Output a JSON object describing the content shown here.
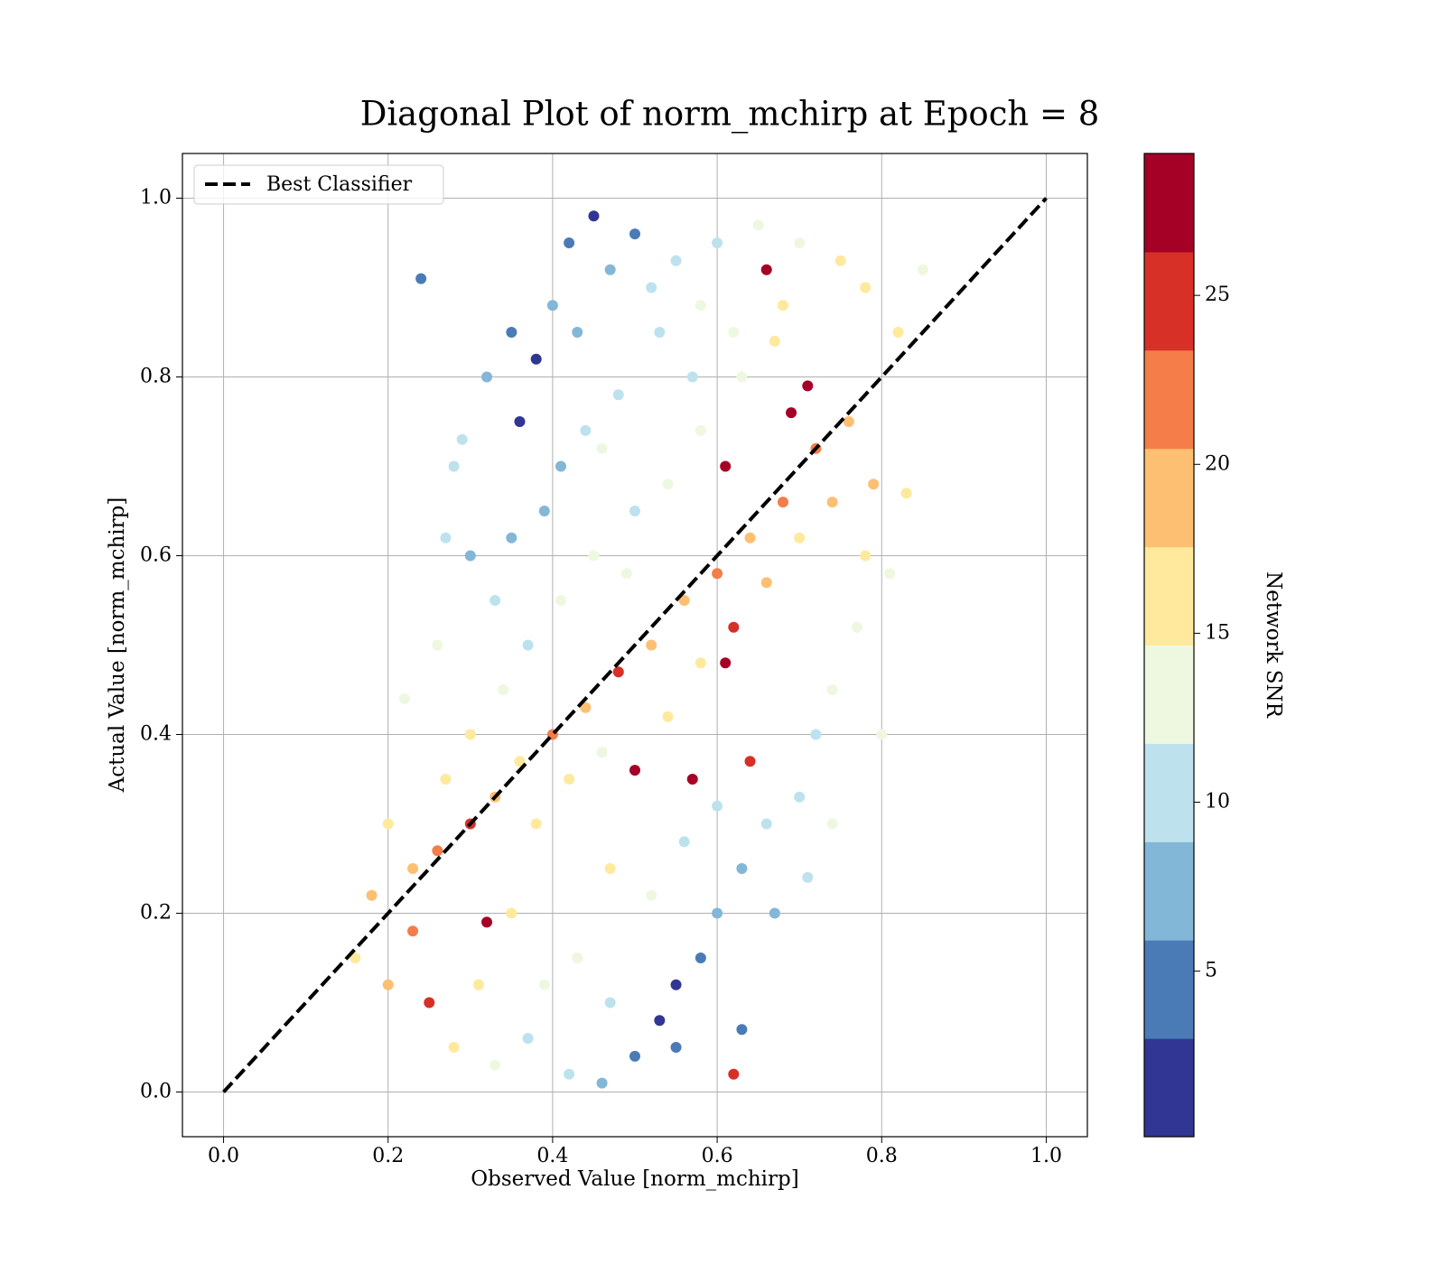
{
  "chart_data": {
    "type": "scatter",
    "title": "Diagonal Plot of norm_mchirp at Epoch = 8",
    "xlabel": "Observed Value [norm_mchirp]",
    "ylabel": "Actual Value [norm_mchirp]",
    "xlim": [
      -0.05,
      1.05
    ],
    "ylim": [
      -0.05,
      1.05
    ],
    "xticks": [
      {
        "value": 0,
        "label": "0.0"
      },
      0.2,
      0.4,
      0.6,
      0.8,
      {
        "value": 1,
        "label": "1.0"
      }
    ],
    "yticks": [
      {
        "value": 0,
        "label": "0.0"
      },
      0.2,
      0.4,
      0.6,
      0.8,
      {
        "value": 1,
        "label": "1.0"
      }
    ],
    "grid": true,
    "legend_position": "upper-left",
    "x": [
      0.42,
      0.45,
      0.4,
      0.38,
      0.47,
      0.5,
      0.43,
      0.36,
      0.41,
      0.52,
      0.55,
      0.6,
      0.65,
      0.7,
      0.75,
      0.78,
      0.68,
      0.62,
      0.57,
      0.48,
      0.44,
      0.39,
      0.35,
      0.33,
      0.3,
      0.28,
      0.24,
      0.26,
      0.22,
      0.2,
      0.18,
      0.16,
      0.2,
      0.23,
      0.26,
      0.3,
      0.32,
      0.25,
      0.28,
      0.33,
      0.37,
      0.42,
      0.46,
      0.5,
      0.53,
      0.55,
      0.58,
      0.6,
      0.63,
      0.66,
      0.7,
      0.72,
      0.74,
      0.77,
      0.78,
      0.79,
      0.76,
      0.72,
      0.68,
      0.64,
      0.6,
      0.56,
      0.52,
      0.48,
      0.44,
      0.4,
      0.36,
      0.33,
      0.38,
      0.42,
      0.46,
      0.5,
      0.54,
      0.58,
      0.62,
      0.66,
      0.7,
      0.74,
      0.71,
      0.69,
      0.66,
      0.61,
      0.57,
      0.61,
      0.46,
      0.5,
      0.54,
      0.58,
      0.63,
      0.67,
      0.41,
      0.45,
      0.49,
      0.37,
      0.34,
      0.3,
      0.27,
      0.23,
      0.47,
      0.52,
      0.56,
      0.6,
      0.43,
      0.47,
      0.39,
      0.35,
      0.31,
      0.85,
      0.82,
      0.63,
      0.62,
      0.64,
      0.55,
      0.53,
      0.58,
      0.35,
      0.32,
      0.29,
      0.27,
      0.74,
      0.71,
      0.67,
      0.8,
      0.83,
      0.81
    ],
    "y": [
      0.95,
      0.98,
      0.88,
      0.82,
      0.92,
      0.96,
      0.85,
      0.75,
      0.7,
      0.9,
      0.93,
      0.95,
      0.97,
      0.95,
      0.93,
      0.9,
      0.88,
      0.85,
      0.8,
      0.78,
      0.74,
      0.65,
      0.62,
      0.55,
      0.6,
      0.7,
      0.91,
      0.5,
      0.44,
      0.3,
      0.22,
      0.15,
      0.12,
      0.18,
      0.27,
      0.3,
      0.19,
      0.1,
      0.05,
      0.03,
      0.06,
      0.02,
      0.01,
      0.04,
      0.08,
      0.12,
      0.15,
      0.2,
      0.25,
      0.3,
      0.33,
      0.4,
      0.45,
      0.52,
      0.6,
      0.68,
      0.75,
      0.72,
      0.66,
      0.62,
      0.58,
      0.55,
      0.5,
      0.47,
      0.43,
      0.4,
      0.37,
      0.33,
      0.3,
      0.35,
      0.38,
      0.36,
      0.42,
      0.48,
      0.52,
      0.57,
      0.62,
      0.66,
      0.79,
      0.76,
      0.92,
      0.7,
      0.35,
      0.48,
      0.72,
      0.65,
      0.68,
      0.74,
      0.8,
      0.84,
      0.55,
      0.6,
      0.58,
      0.5,
      0.45,
      0.4,
      0.35,
      0.25,
      0.25,
      0.22,
      0.28,
      0.32,
      0.15,
      0.1,
      0.12,
      0.2,
      0.12,
      0.92,
      0.85,
      0.07,
      0.02,
      0.37,
      0.05,
      0.85,
      0.88,
      0.85,
      0.8,
      0.73,
      0.62,
      0.3,
      0.24,
      0.2,
      0.4,
      0.67,
      0.58
    ],
    "c": [
      4,
      3,
      6,
      2,
      7,
      5,
      8,
      3,
      6,
      9,
      11,
      10,
      12,
      14,
      16,
      17,
      15,
      13,
      11,
      9,
      10,
      7,
      8,
      9,
      6,
      10,
      5,
      12,
      13,
      16,
      18,
      17,
      19,
      22,
      21,
      24,
      27,
      26,
      15,
      13,
      11,
      9,
      6,
      4,
      3,
      2,
      5,
      7,
      8,
      10,
      9,
      11,
      13,
      14,
      16,
      18,
      19,
      23,
      21,
      20,
      22,
      19,
      20,
      24,
      18,
      21,
      17,
      20,
      16,
      15,
      14,
      28,
      17,
      15,
      26,
      18,
      16,
      20,
      28,
      29,
      27,
      27,
      28,
      29,
      12,
      11,
      13,
      14,
      12,
      16,
      12,
      13,
      14,
      11,
      13,
      15,
      17,
      19,
      15,
      13,
      11,
      10,
      12,
      10,
      14,
      16,
      15,
      13,
      16,
      4,
      25,
      25,
      5,
      9,
      12,
      5,
      8,
      9,
      11,
      12,
      10,
      8,
      14,
      15,
      13
    ],
    "reference_line": {
      "name": "Best Classifier",
      "x": [
        0,
        1
      ],
      "y": [
        0,
        1
      ],
      "color": "#000000",
      "dash": true
    },
    "colorbar": {
      "label": "Network SNR",
      "lim": [
        0.1,
        29.2
      ],
      "ticks": [
        5,
        10,
        15,
        20,
        25
      ],
      "colors": [
        "#313695",
        "#4a7bb7",
        "#83b7d7",
        "#bde2ee",
        "#eef8e0",
        "#fee99d",
        "#fdbf71",
        "#f57d4a",
        "#d73027",
        "#a50026"
      ]
    }
  }
}
